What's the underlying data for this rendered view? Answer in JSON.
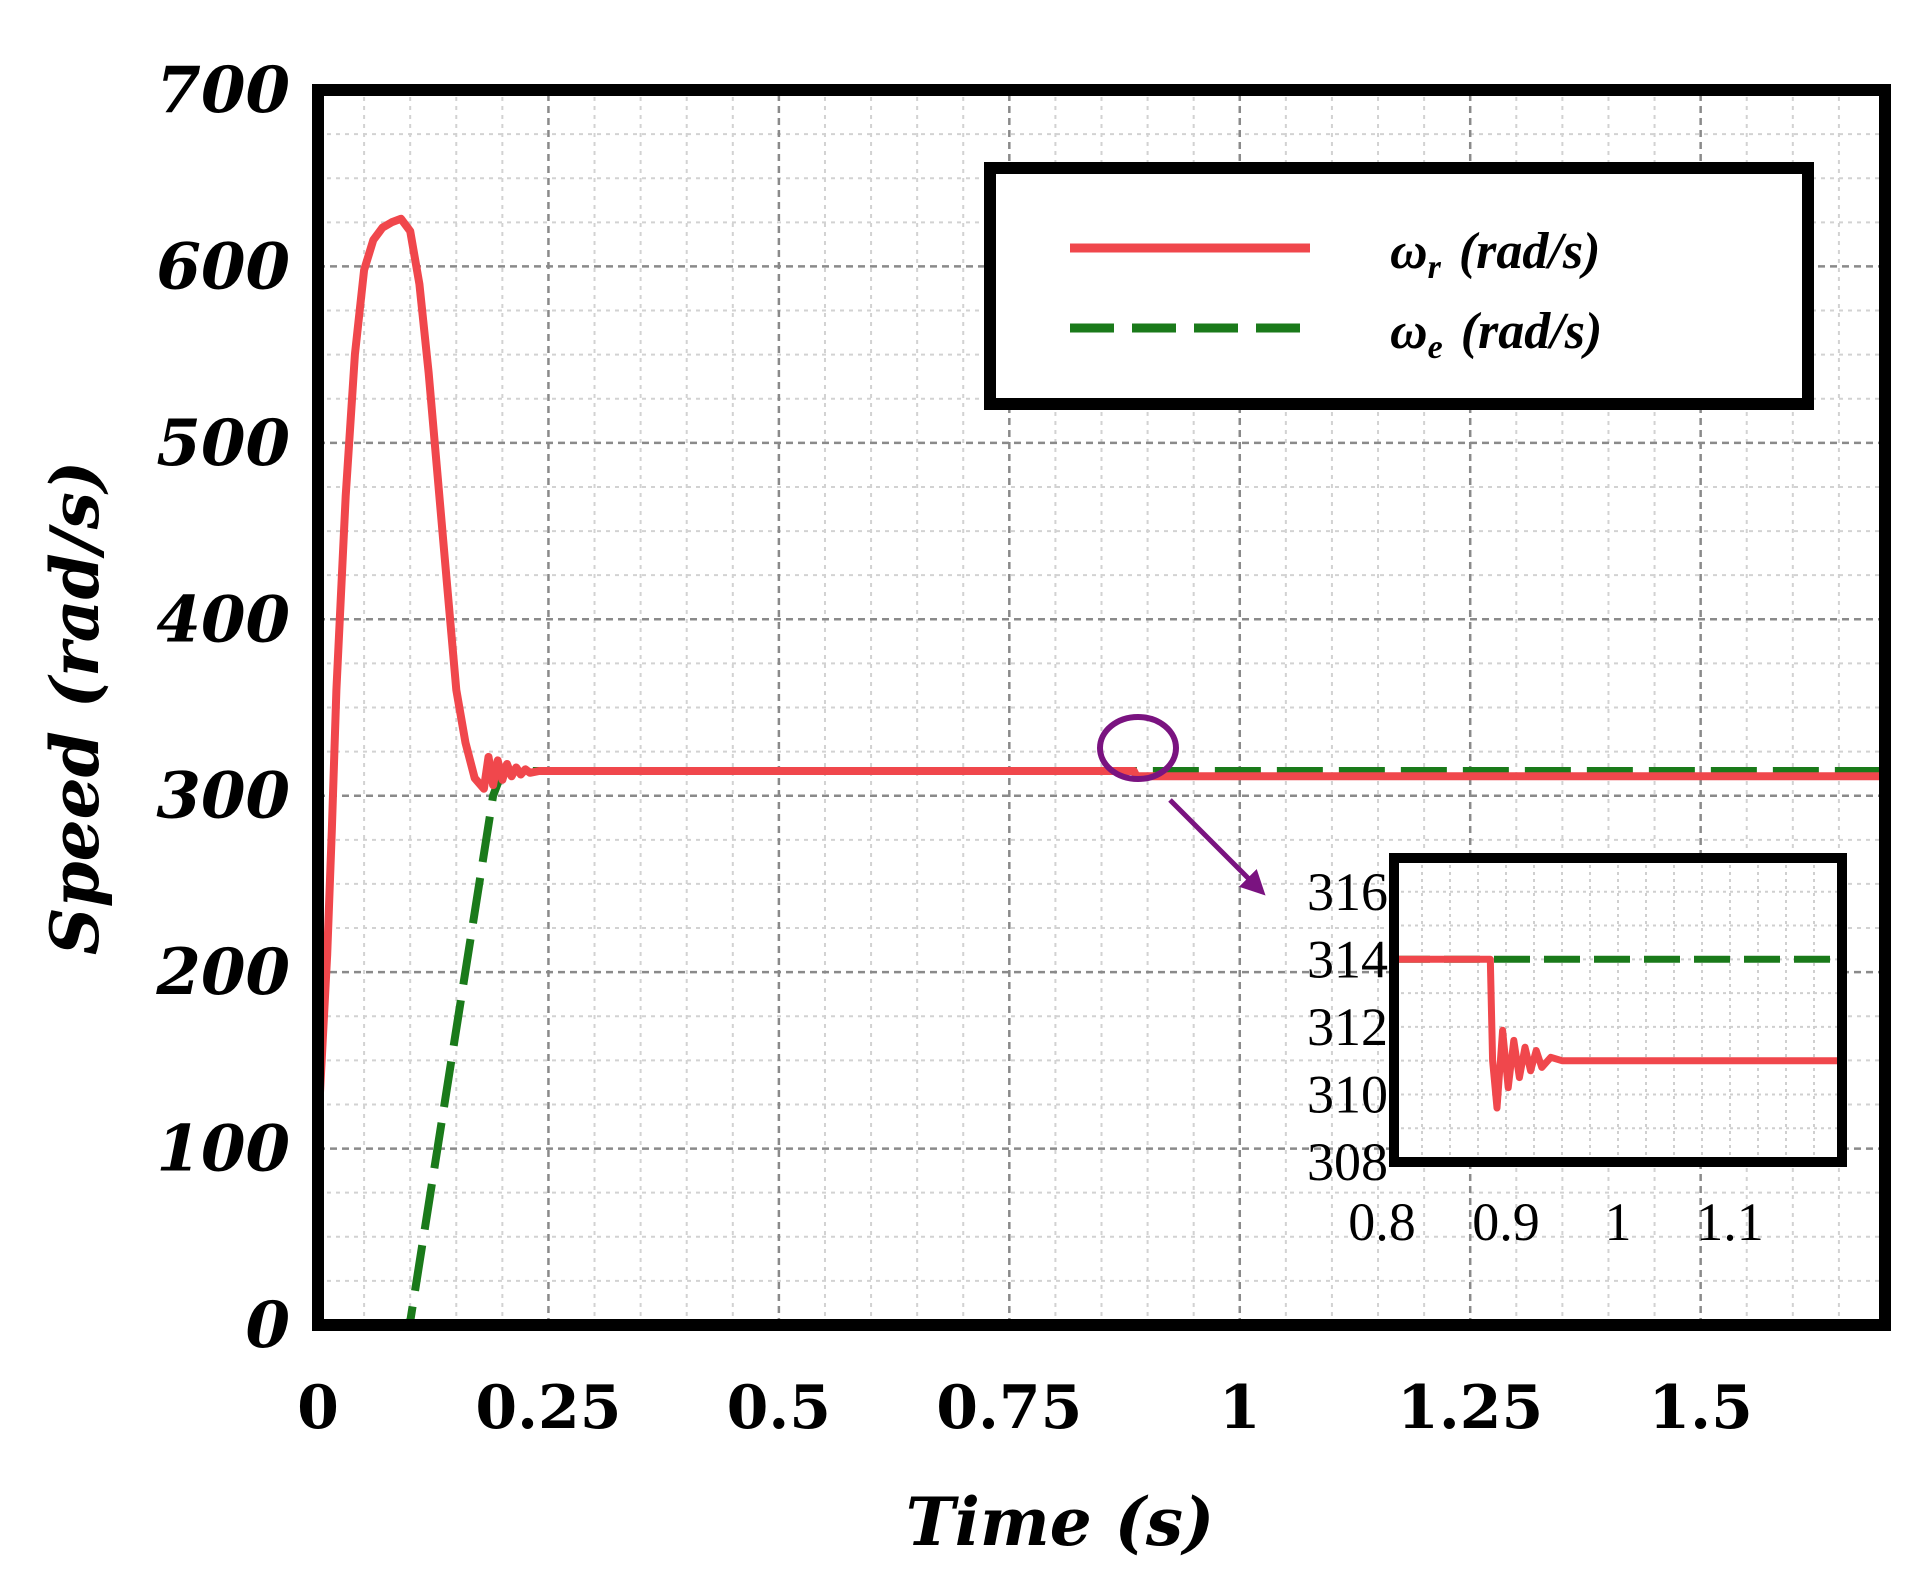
{
  "chart_data": {
    "type": "line",
    "xlabel": "Time (s)",
    "ylabel": "Speed (rad/s)",
    "xlim": [
      0,
      1.7
    ],
    "ylim": [
      0,
      700
    ],
    "xticks": [
      0,
      0.25,
      0.5,
      0.75,
      1,
      1.25,
      1.5
    ],
    "xtick_labels": [
      "0",
      "0.25",
      "0.5",
      "0.75",
      "1",
      "1.25",
      "1.5"
    ],
    "yticks": [
      0,
      100,
      200,
      300,
      400,
      500,
      600,
      700
    ],
    "ytick_labels": [
      "0",
      "100",
      "200",
      "300",
      "400",
      "500",
      "600",
      "700"
    ],
    "grid": true,
    "legend_position": "top-right",
    "series": [
      {
        "name": "ωr (rad/s)",
        "symbol": "ω",
        "subscript": "r",
        "unit": "(rad/s)",
        "color": "#f0474c",
        "style": "solid",
        "x": [
          0,
          0.005,
          0.01,
          0.015,
          0.02,
          0.03,
          0.04,
          0.05,
          0.06,
          0.07,
          0.08,
          0.09,
          0.1,
          0.11,
          0.12,
          0.13,
          0.14,
          0.15,
          0.16,
          0.17,
          0.18,
          0.185,
          0.19,
          0.195,
          0.2,
          0.205,
          0.21,
          0.215,
          0.22,
          0.225,
          0.23,
          0.24,
          0.25,
          0.3,
          0.5,
          0.7,
          0.85,
          0.885,
          0.888,
          0.9,
          1.0,
          1.2,
          1.4,
          1.6,
          1.7
        ],
        "y": [
          110,
          160,
          210,
          280,
          360,
          470,
          550,
          598,
          615,
          622,
          625,
          627,
          620,
          590,
          540,
          480,
          420,
          360,
          330,
          310,
          304,
          322,
          306,
          320,
          309,
          318,
          311,
          316,
          312,
          315,
          313,
          314,
          314,
          314,
          314,
          314,
          314,
          314,
          311,
          311,
          311,
          311,
          311,
          311,
          311
        ]
      },
      {
        "name": "ωe (rad/s)",
        "symbol": "ω",
        "subscript": "e",
        "unit": "(rad/s)",
        "color": "#1a7a1a",
        "style": "dashed",
        "x": [
          0,
          0.09,
          0.1,
          0.19,
          0.2,
          1.7
        ],
        "y": [
          0,
          0,
          2,
          300,
          314,
          314
        ]
      }
    ],
    "annotations": [
      {
        "type": "zoom-circle",
        "target_x": 0.89,
        "target_y": 314
      },
      {
        "type": "arrow",
        "description": "points to inset"
      }
    ],
    "inset": {
      "xlim": [
        0.8,
        1.2
      ],
      "ylim": [
        308,
        317
      ],
      "xticks": [
        0.8,
        0.9,
        1,
        1.1
      ],
      "xtick_labels": [
        "0.8",
        "0.9",
        "1",
        "1.1"
      ],
      "yticks": [
        308,
        310,
        312,
        314,
        316
      ],
      "ytick_labels": [
        "308",
        "310",
        "312",
        "314",
        "316"
      ],
      "series": [
        {
          "name": "ωr",
          "color": "#f0474c",
          "style": "solid",
          "x": [
            0.8,
            0.886,
            0.888,
            0.892,
            0.897,
            0.902,
            0.907,
            0.912,
            0.917,
            0.922,
            0.927,
            0.932,
            0.94,
            0.95,
            1.0,
            1.1,
            1.2
          ],
          "y": [
            314,
            314,
            311,
            309.6,
            311.9,
            310.2,
            311.6,
            310.5,
            311.4,
            310.7,
            311.3,
            310.8,
            311.1,
            311,
            311,
            311,
            311
          ]
        },
        {
          "name": "ωe",
          "color": "#1a7a1a",
          "style": "dashed",
          "x": [
            0.8,
            1.2
          ],
          "y": [
            314,
            314
          ]
        }
      ]
    }
  }
}
